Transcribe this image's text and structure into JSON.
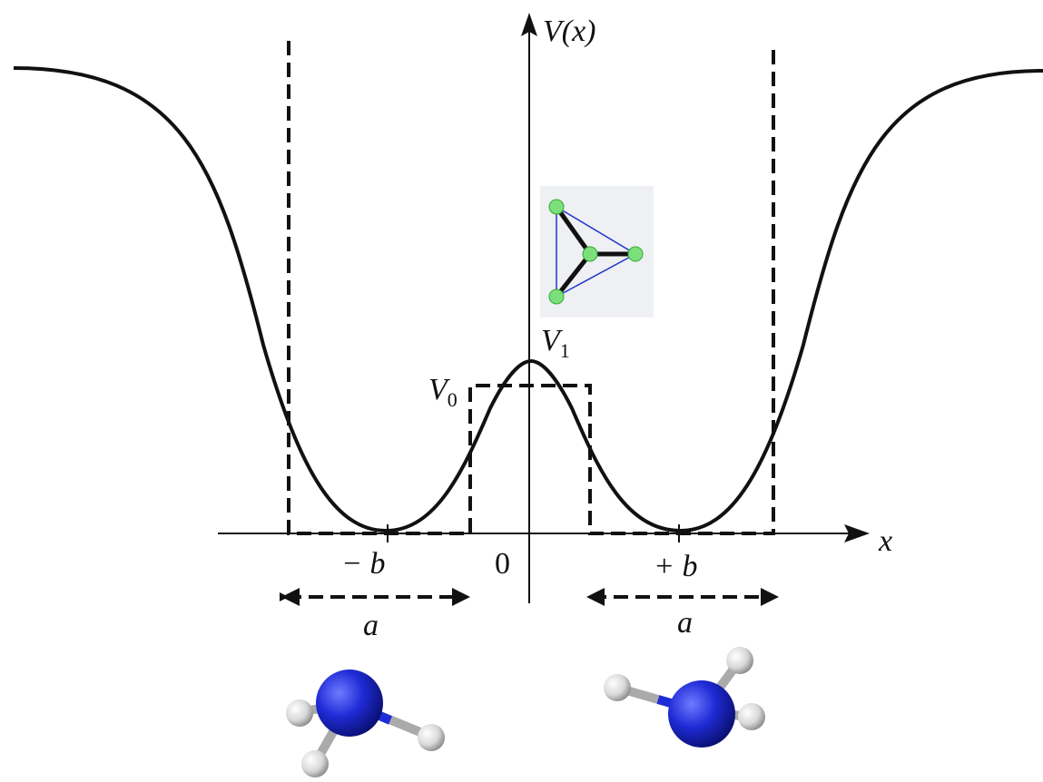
{
  "axes": {
    "y_label": "V(x)",
    "x_label": "x"
  },
  "levels": {
    "v0": {
      "symbol": "V",
      "subscript": "0"
    },
    "v1": {
      "symbol": "V",
      "subscript": "1"
    }
  },
  "ticks": {
    "minus_b": "− b",
    "origin": "0",
    "plus_b": "+ b"
  },
  "widths": {
    "left": "a",
    "right": "a"
  }
}
